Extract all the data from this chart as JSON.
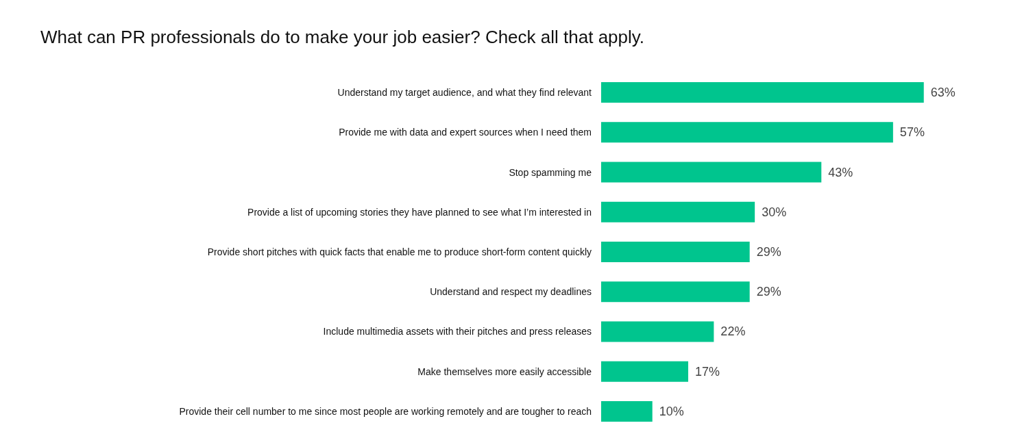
{
  "chart_data": {
    "type": "bar",
    "orientation": "horizontal",
    "title": "What can PR professionals do to make your job easier? Check all that apply.",
    "categories": [
      "Understand my target audience, and what they find relevant",
      "Provide me with data and expert sources when I need them",
      "Stop spamming me",
      "Provide a list of upcoming stories they have planned to see what I’m interested in",
      "Provide short pitches with quick facts that enable me to produce short-form content quickly",
      "Understand and respect my deadlines",
      "Include multimedia assets with their pitches and press releases",
      "Make themselves more easily accessible",
      "Provide their cell number to me since most people are working remotely and are tougher to reach"
    ],
    "values": [
      63,
      57,
      43,
      30,
      29,
      29,
      22,
      17,
      10
    ],
    "value_labels": [
      "63%",
      "57%",
      "43%",
      "30%",
      "29%",
      "29%",
      "22%",
      "17%",
      "10%"
    ],
    "color": "#00c58e",
    "grid": false
  }
}
